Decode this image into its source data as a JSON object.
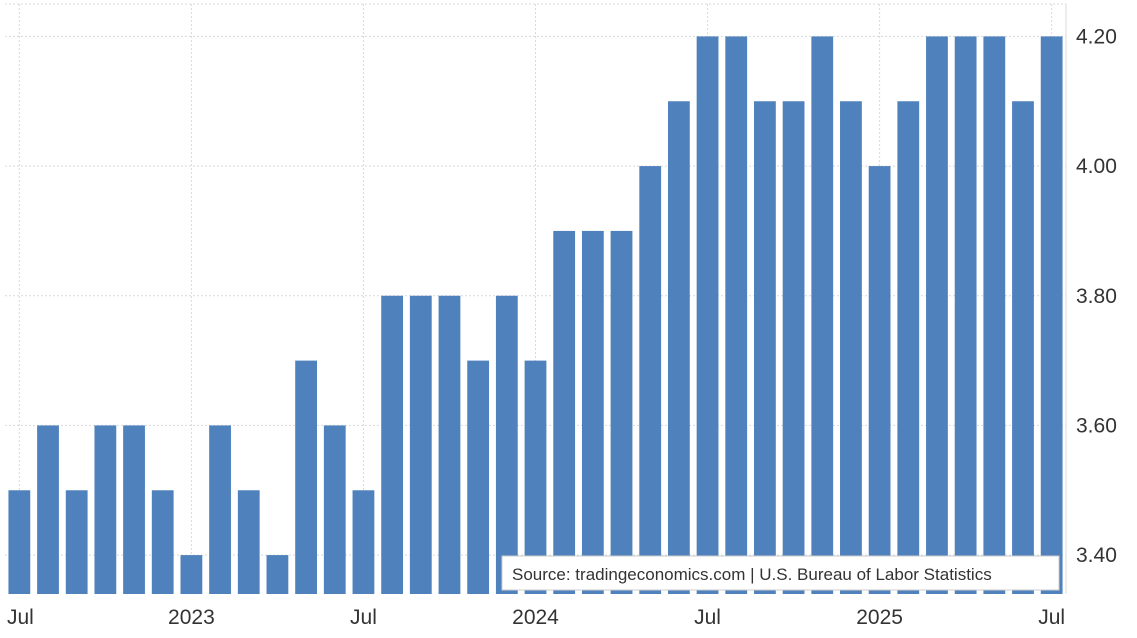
{
  "chart_data": {
    "type": "bar",
    "title": "",
    "xlabel": "",
    "ylabel": "",
    "ylim": [
      3.34,
      4.25
    ],
    "y_ticks": [
      "3.40",
      "3.60",
      "3.80",
      "4.00",
      "4.20"
    ],
    "y_tick_values": [
      3.4,
      3.6,
      3.8,
      4.0,
      4.2
    ],
    "x_tick_labels": [
      {
        "label": "Jul",
        "index": 0
      },
      {
        "label": "2023",
        "index": 6
      },
      {
        "label": "Jul",
        "index": 12
      },
      {
        "label": "2024",
        "index": 18
      },
      {
        "label": "Jul",
        "index": 24
      },
      {
        "label": "2025",
        "index": 30
      },
      {
        "label": "Jul",
        "index": 36
      }
    ],
    "categories": [
      "Jul 2022",
      "Aug 2022",
      "Sep 2022",
      "Oct 2022",
      "Nov 2022",
      "Dec 2022",
      "Jan 2023",
      "Feb 2023",
      "Mar 2023",
      "Apr 2023",
      "May 2023",
      "Jun 2023",
      "Jul 2023",
      "Aug 2023",
      "Sep 2023",
      "Oct 2023",
      "Nov 2023",
      "Dec 2023",
      "Jan 2024",
      "Feb 2024",
      "Mar 2024",
      "Apr 2024",
      "May 2024",
      "Jun 2024",
      "Jul 2024",
      "Aug 2024",
      "Sep 2024",
      "Oct 2024",
      "Nov 2024",
      "Dec 2024",
      "Jan 2025",
      "Feb 2025",
      "Mar 2025",
      "Apr 2025",
      "May 2025",
      "Jun 2025",
      "Jul 2025"
    ],
    "values": [
      3.5,
      3.6,
      3.5,
      3.6,
      3.6,
      3.5,
      3.4,
      3.6,
      3.5,
      3.4,
      3.7,
      3.6,
      3.5,
      3.8,
      3.8,
      3.8,
      3.7,
      3.8,
      3.7,
      3.9,
      3.9,
      3.9,
      4.0,
      4.1,
      4.2,
      4.2,
      4.1,
      4.1,
      4.2,
      4.1,
      4.0,
      4.1,
      4.2,
      4.2,
      4.2,
      4.1,
      4.2
    ],
    "grid": true,
    "bar_color": "#4f81bd",
    "source": "Source: tradingeconomics.com | U.S. Bureau of Labor Statistics"
  }
}
